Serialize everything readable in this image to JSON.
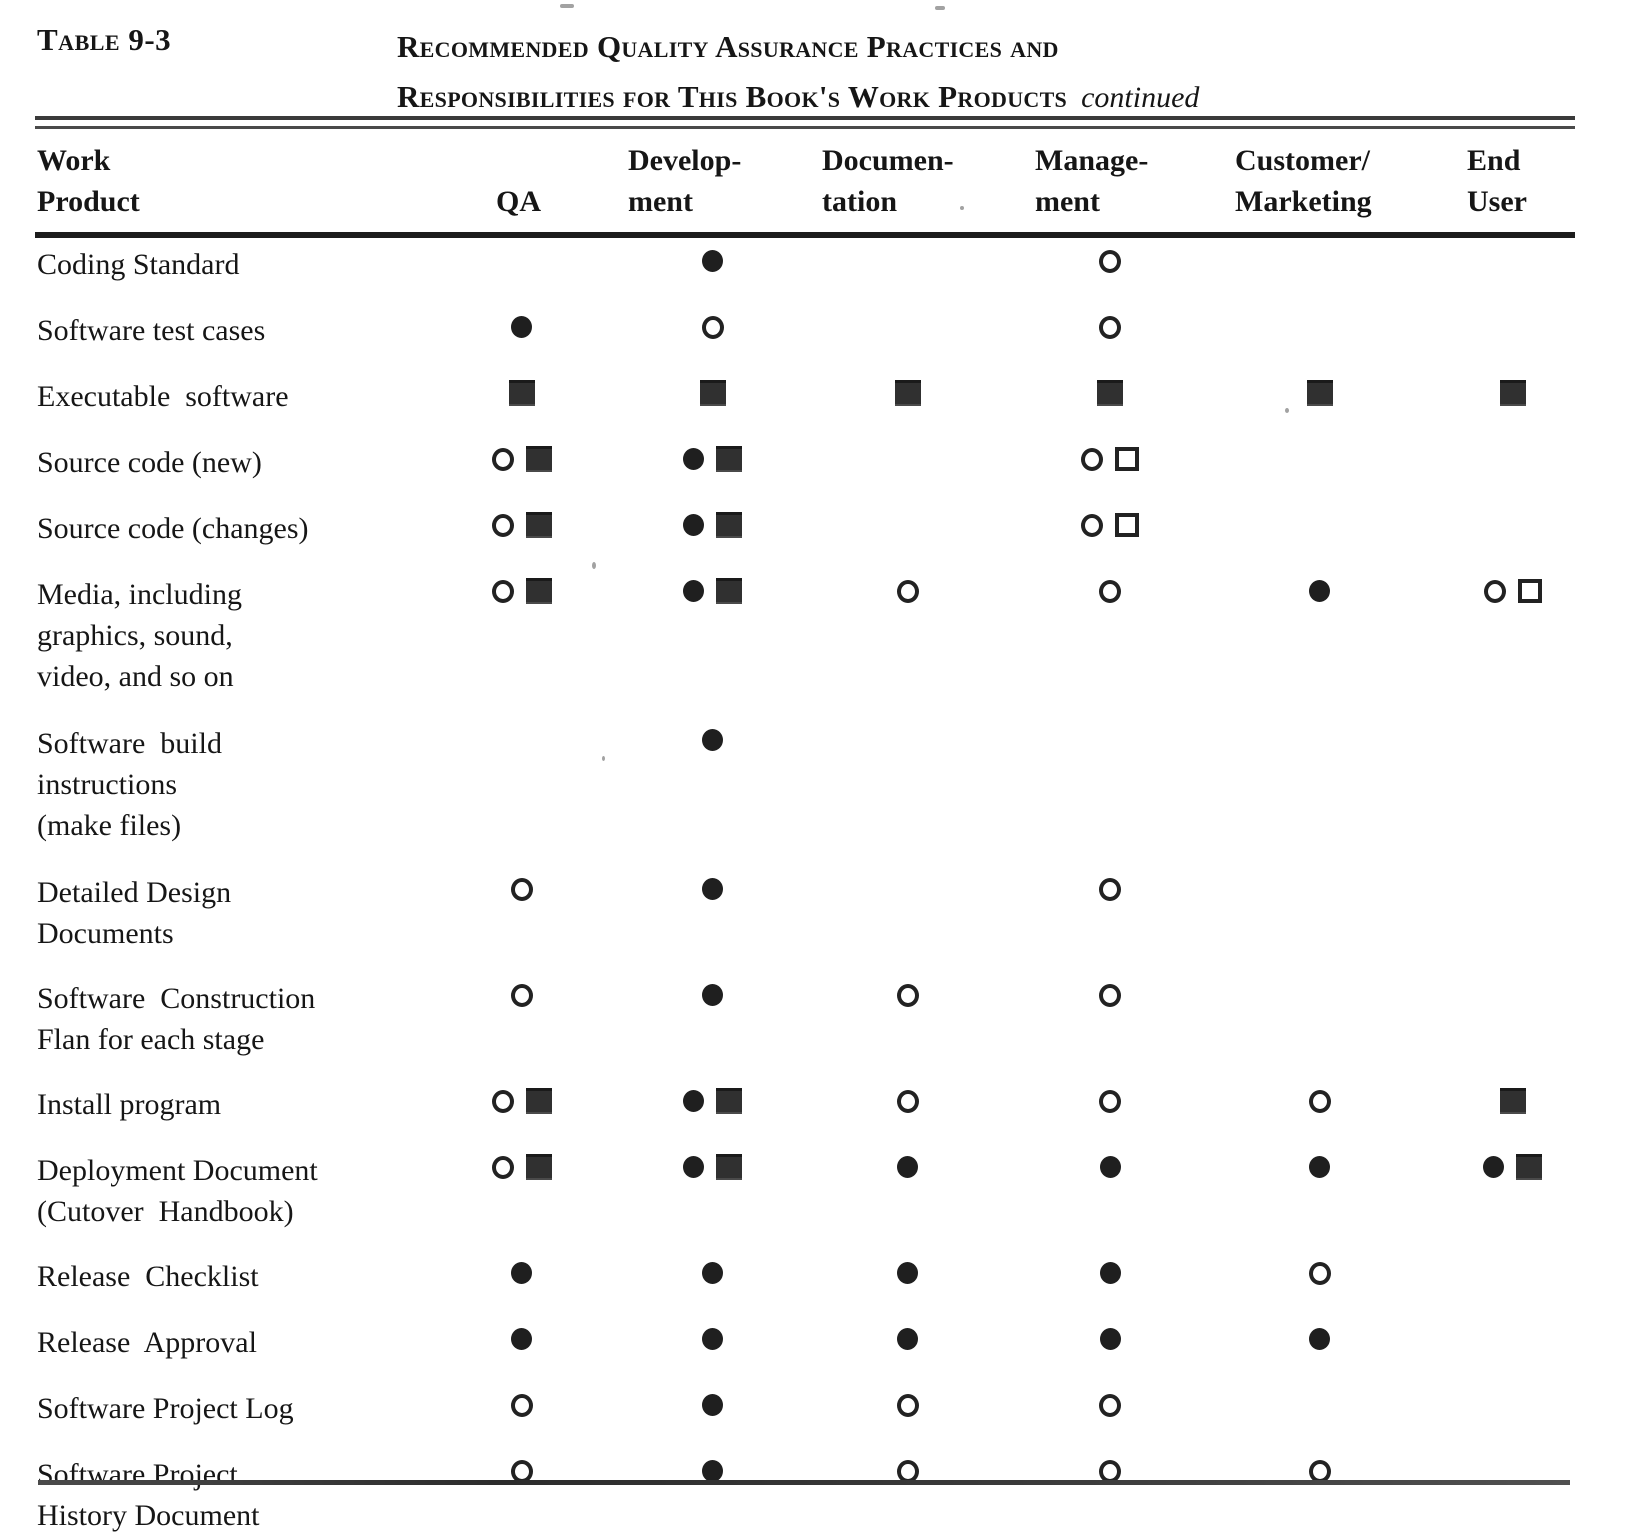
{
  "title": {
    "table_label": "Table 9-3",
    "line1": "Recommended Quality Assurance Practices and",
    "line2": "Responsibilities for This Book's Work Products",
    "continued": "continued"
  },
  "colors": {
    "ink": "#1c1c1c",
    "paper": "#ffffff",
    "rule": "#3a3a3a"
  },
  "symbol_ids": [
    "filled-circle",
    "open-circle",
    "filled-square",
    "open-square"
  ],
  "columns": [
    {
      "id": "work-product",
      "line1": "Work",
      "line2": "Product"
    },
    {
      "id": "qa",
      "line1": "",
      "line2": "QA"
    },
    {
      "id": "development",
      "line1": "Develop-",
      "line2": "ment"
    },
    {
      "id": "documentation",
      "line1": "Documen-",
      "line2": "tation"
    },
    {
      "id": "management",
      "line1": "Manage-",
      "line2": "ment"
    },
    {
      "id": "customer-marketing",
      "line1": "Customer/",
      "line2": "Marketing"
    },
    {
      "id": "end-user",
      "line1": "End",
      "line2": "User"
    }
  ],
  "rows": [
    {
      "label": [
        "Coding Standard"
      ],
      "qa": [],
      "development": [
        "filled-circle"
      ],
      "documentation": [],
      "management": [
        "open-circle"
      ],
      "customer_marketing": [],
      "end_user": []
    },
    {
      "label": [
        "Software test cases"
      ],
      "qa": [
        "filled-circle"
      ],
      "development": [
        "open-circle"
      ],
      "documentation": [],
      "management": [
        "open-circle"
      ],
      "customer_marketing": [],
      "end_user": []
    },
    {
      "label": [
        "Executable  software"
      ],
      "qa": [
        "filled-square"
      ],
      "development": [
        "filled-square"
      ],
      "documentation": [
        "filled-square"
      ],
      "management": [
        "filled-square"
      ],
      "customer_marketing": [
        "filled-square"
      ],
      "end_user": [
        "filled-square"
      ]
    },
    {
      "label": [
        "Source code (new)"
      ],
      "qa": [
        "open-circle",
        "filled-square"
      ],
      "development": [
        "filled-circle",
        "filled-square"
      ],
      "documentation": [],
      "management": [
        "open-circle",
        "open-square"
      ],
      "customer_marketing": [],
      "end_user": []
    },
    {
      "label": [
        "Source code (changes)"
      ],
      "qa": [
        "open-circle",
        "filled-square"
      ],
      "development": [
        "filled-circle",
        "filled-square"
      ],
      "documentation": [],
      "management": [
        "open-circle",
        "open-square"
      ],
      "customer_marketing": [],
      "end_user": []
    },
    {
      "label": [
        "Media, including",
        "graphics, sound,",
        "video, and so on"
      ],
      "qa": [
        "open-circle",
        "filled-square"
      ],
      "development": [
        "filled-circle",
        "filled-square"
      ],
      "documentation": [
        "open-circle"
      ],
      "management": [
        "open-circle"
      ],
      "customer_marketing": [
        "filled-circle"
      ],
      "end_user": [
        "open-circle",
        "open-square"
      ]
    },
    {
      "label": [
        "Software  build",
        "instructions",
        "(make files)"
      ],
      "qa": [],
      "development": [
        "filled-circle"
      ],
      "documentation": [],
      "management": [],
      "customer_marketing": [],
      "end_user": []
    },
    {
      "label": [
        "Detailed Design",
        "Documents"
      ],
      "qa": [
        "open-circle"
      ],
      "development": [
        "filled-circle"
      ],
      "documentation": [],
      "management": [
        "open-circle"
      ],
      "customer_marketing": [],
      "end_user": []
    },
    {
      "label": [
        "Software  Construction",
        "Flan for each stage"
      ],
      "qa": [
        "open-circle"
      ],
      "development": [
        "filled-circle"
      ],
      "documentation": [
        "open-circle"
      ],
      "management": [
        "open-circle"
      ],
      "customer_marketing": [],
      "end_user": []
    },
    {
      "label": [
        "Install program"
      ],
      "qa": [
        "open-circle",
        "filled-square"
      ],
      "development": [
        "filled-circle",
        "filled-square"
      ],
      "documentation": [
        "open-circle"
      ],
      "management": [
        "open-circle"
      ],
      "customer_marketing": [
        "open-circle"
      ],
      "end_user": [
        "filled-square"
      ]
    },
    {
      "label": [
        "Deployment Document",
        "(Cutover  Handbook)"
      ],
      "qa": [
        "open-circle",
        "filled-square"
      ],
      "development": [
        "filled-circle",
        "filled-square"
      ],
      "documentation": [
        "filled-circle"
      ],
      "management": [
        "filled-circle"
      ],
      "customer_marketing": [
        "filled-circle"
      ],
      "end_user": [
        "filled-circle",
        "filled-square"
      ]
    },
    {
      "label": [
        "Release  Checklist"
      ],
      "qa": [
        "filled-circle"
      ],
      "development": [
        "filled-circle"
      ],
      "documentation": [
        "filled-circle"
      ],
      "management": [
        "filled-circle"
      ],
      "customer_marketing": [
        "open-circle"
      ],
      "end_user": []
    },
    {
      "label": [
        "Release  Approval"
      ],
      "qa": [
        "filled-circle"
      ],
      "development": [
        "filled-circle"
      ],
      "documentation": [
        "filled-circle"
      ],
      "management": [
        "filled-circle"
      ],
      "customer_marketing": [
        "filled-circle"
      ],
      "end_user": []
    },
    {
      "label": [
        "Software Project Log"
      ],
      "qa": [
        "open-circle"
      ],
      "development": [
        "filled-circle"
      ],
      "documentation": [
        "open-circle"
      ],
      "management": [
        "open-circle"
      ],
      "customer_marketing": [],
      "end_user": []
    },
    {
      "label": [
        "Software Project",
        "History Document"
      ],
      "qa": [
        "open-circle"
      ],
      "development": [
        "filled-circle"
      ],
      "documentation": [
        "open-circle"
      ],
      "management": [
        "open-circle"
      ],
      "customer_marketing": [
        "open-circle"
      ],
      "end_user": []
    }
  ]
}
